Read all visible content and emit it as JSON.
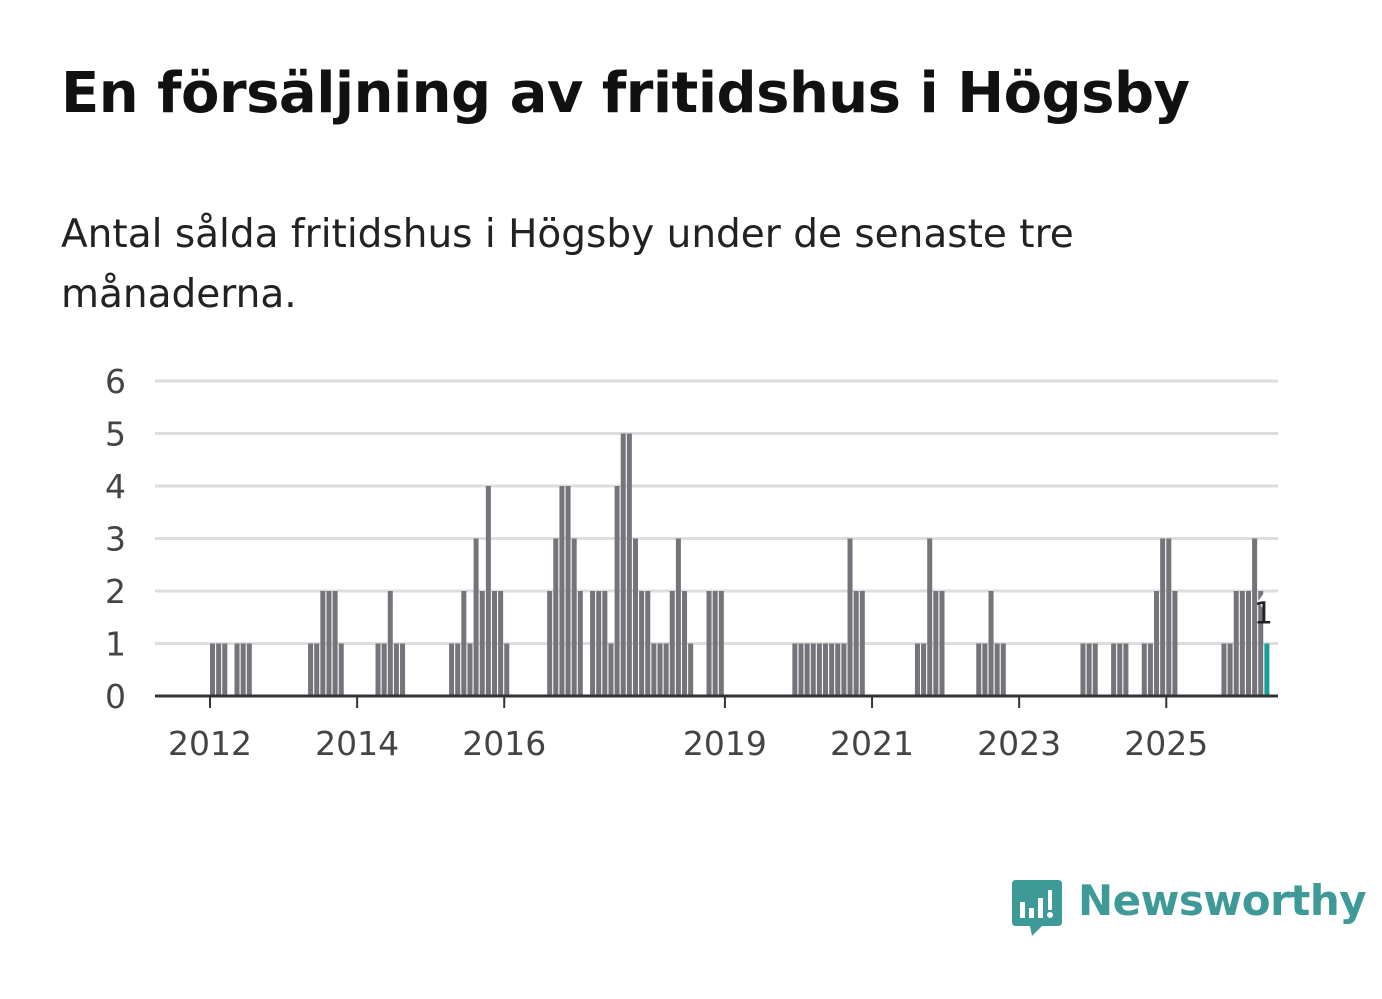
{
  "title": "En försäljning av fritidshus i Högsby",
  "subtitle": "Antal sålda fritidshus i Högsby under de senaste tre månaderna.",
  "brand": {
    "name": "Newsworthy",
    "icon": "newsworthy-logo-icon",
    "color": "#3d9a96"
  },
  "colors": {
    "bar": "#75747a",
    "highlight": "#1a9e9a",
    "grid": "#dddddd",
    "axis": "#333333"
  },
  "chart_data": {
    "type": "bar",
    "title": "En försäljning av fritidshus i Högsby",
    "xlabel": "",
    "ylabel": "",
    "ylim": [
      0,
      6
    ],
    "yticks": [
      "0",
      "1",
      "2",
      "3",
      "4",
      "5",
      "6"
    ],
    "xticks": [
      "2012",
      "2014",
      "2016",
      "2019",
      "2021",
      "2023",
      "2025"
    ],
    "grid": true,
    "start": "2011-04",
    "values": [
      0,
      0,
      0,
      0,
      0,
      0,
      0,
      0,
      0,
      1,
      1,
      1,
      0,
      1,
      1,
      1,
      0,
      0,
      0,
      0,
      0,
      0,
      0,
      0,
      0,
      1,
      1,
      2,
      2,
      2,
      1,
      0,
      0,
      0,
      0,
      0,
      1,
      1,
      2,
      1,
      1,
      0,
      0,
      0,
      0,
      0,
      0,
      0,
      1,
      1,
      2,
      1,
      3,
      2,
      4,
      2,
      2,
      1,
      0,
      0,
      0,
      0,
      0,
      0,
      2,
      3,
      4,
      4,
      3,
      2,
      0,
      2,
      2,
      2,
      1,
      4,
      5,
      5,
      3,
      2,
      2,
      1,
      1,
      1,
      2,
      3,
      2,
      1,
      0,
      0,
      2,
      2,
      2,
      0,
      0,
      0,
      0,
      0,
      0,
      0,
      0,
      0,
      0,
      0,
      1,
      1,
      1,
      1,
      1,
      1,
      1,
      1,
      1,
      3,
      2,
      2,
      0,
      0,
      0,
      0,
      0,
      0,
      0,
      0,
      1,
      1,
      3,
      2,
      2,
      0,
      0,
      0,
      0,
      0,
      1,
      1,
      2,
      1,
      1,
      0,
      0,
      0,
      0,
      0,
      0,
      0,
      0,
      0,
      0,
      0,
      0,
      1,
      1,
      1,
      0,
      0,
      1,
      1,
      1,
      0,
      0,
      1,
      1,
      2,
      3,
      3,
      2,
      0,
      0,
      0,
      0,
      0,
      0,
      0,
      1,
      1,
      2,
      2,
      2,
      3,
      2,
      1
    ],
    "highlight": {
      "label": "1",
      "value": 1
    }
  }
}
